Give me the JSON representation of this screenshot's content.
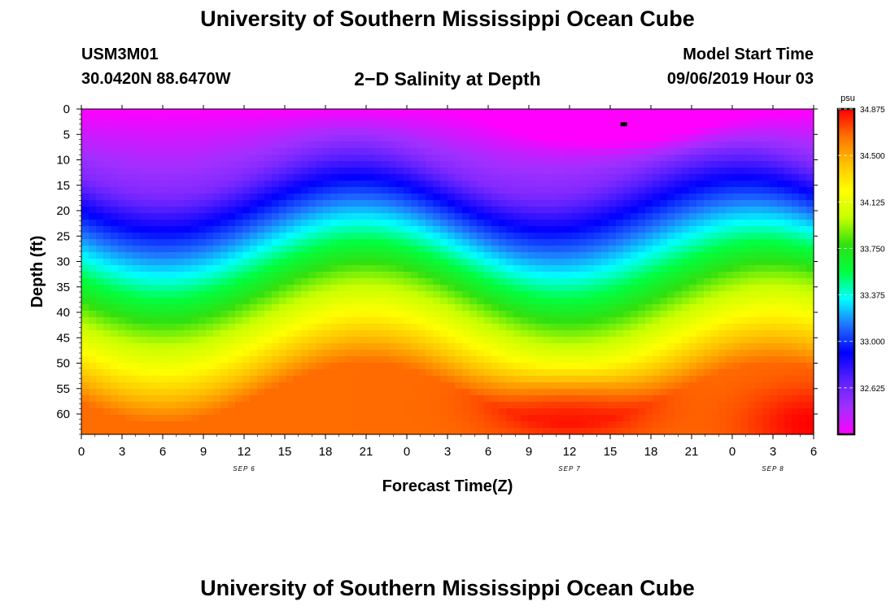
{
  "header": {
    "title": "University of Southern Mississippi Ocean Cube",
    "station_id": "USM3M01",
    "coordinates": "30.0420N 88.6470W",
    "plot_title": "2−D Salinity at Depth",
    "model_start_label": "Model Start Time",
    "model_start_value": "09/06/2019 Hour 03"
  },
  "footer": {
    "title": "University of Southern Mississippi Ocean Cube"
  },
  "colors": {
    "background": "#ffffff",
    "frame": "#000000",
    "scale_stops": [
      "#ff00ff",
      "#a030ff",
      "#5a20ff",
      "#0000ff",
      "#2070ff",
      "#00ffff",
      "#00ff40",
      "#30e010",
      "#c8ff00",
      "#ffff00",
      "#ffc000",
      "#ff7000",
      "#ff0000"
    ]
  },
  "chart_data": {
    "type": "heatmap",
    "title": "2−D Salinity at Depth",
    "xlabel": "Forecast Time(Z)",
    "ylabel": "Depth (ft)",
    "x_ticks": [
      "0",
      "3",
      "6",
      "9",
      "12",
      "15",
      "18",
      "21",
      "0",
      "3",
      "6",
      "9",
      "12",
      "15",
      "18",
      "21",
      "0",
      "3",
      "6"
    ],
    "x_hours": [
      0,
      3,
      6,
      9,
      12,
      15,
      18,
      21,
      24,
      27,
      30,
      33,
      36,
      39,
      42,
      45,
      48,
      51,
      54
    ],
    "day_labels": [
      {
        "label": "SEP 6",
        "hour": 12
      },
      {
        "label": "SEP 7",
        "hour": 36
      },
      {
        "label": "SEP 8",
        "hour": 51
      }
    ],
    "y_ticks": [
      0,
      5,
      10,
      15,
      20,
      25,
      30,
      35,
      40,
      45,
      50,
      55,
      60
    ],
    "y_range_ft": [
      0,
      64
    ],
    "x_range_hours": [
      0,
      54
    ],
    "colorbar": {
      "unit": "psu",
      "min": 32.25,
      "max": 34.875,
      "tick_labels": [
        "34.875",
        "34.500",
        "34.125",
        "33.750",
        "33.375",
        "33.000",
        "32.625"
      ],
      "tick_values": [
        34.875,
        34.5,
        34.125,
        33.75,
        33.375,
        33.0,
        32.625
      ]
    },
    "marker": {
      "hour": 40,
      "depth_ft": 3
    },
    "field_description_values": {
      "surface_min_psu": 32.25,
      "deep_max_psu": 34.875
    }
  }
}
